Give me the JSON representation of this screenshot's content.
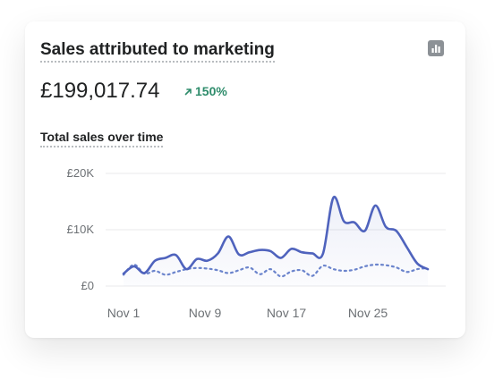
{
  "card": {
    "title": "Sales attributed to marketing",
    "total_value": "£199,017.74",
    "change_percent": "150%",
    "subtitle": "Total sales over time",
    "chart_toggle_icon": "bar-chart-icon"
  },
  "colors": {
    "primary_line": "#4f63bd",
    "comparison_line": "#6b84cc",
    "positive": "#2e8c6b"
  },
  "chart_data": {
    "type": "line",
    "title": "",
    "xlabel": "",
    "ylabel": "",
    "ylim": [
      0,
      20000
    ],
    "y_ticks": [
      "£0",
      "£10K",
      "£20K"
    ],
    "x_ticks": [
      "Nov 1",
      "Nov 9",
      "Nov 17",
      "Nov 25"
    ],
    "grid": true,
    "series": [
      {
        "values": [
          2200,
          3500,
          2300,
          4500,
          5000,
          5500,
          3000,
          4800,
          4500,
          5800,
          8800,
          5600,
          6000,
          6400,
          6200,
          5000,
          6600,
          6000,
          5800,
          5700,
          15700,
          11500,
          11300,
          9800,
          14300,
          10500,
          9800,
          6900,
          4000,
          3000
        ]
      },
      {
        "values": [
          2000,
          3800,
          2200,
          2700,
          2000,
          2500,
          3000,
          3200,
          3100,
          2800,
          2300,
          2800,
          3300,
          2100,
          3000,
          1700,
          2600,
          2800,
          1800,
          3600,
          3000,
          2700,
          2900,
          3500,
          3800,
          3700,
          3300,
          2500,
          3000,
          3200
        ]
      }
    ]
  }
}
